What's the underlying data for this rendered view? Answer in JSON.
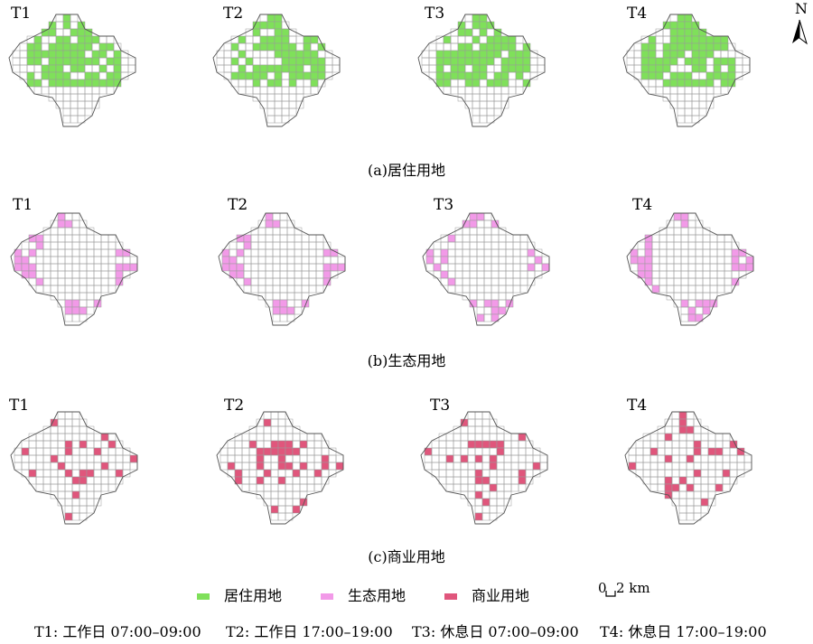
{
  "rows": [
    {
      "caption": "(a)居住用地",
      "color_key": "residential",
      "panels": [
        {
          "label": "T1"
        },
        {
          "label": "T2"
        },
        {
          "label": "T3"
        },
        {
          "label": "T4"
        }
      ]
    },
    {
      "caption": "(b)生态用地",
      "color_key": "ecological",
      "panels": [
        {
          "label": "T1"
        },
        {
          "label": "T2"
        },
        {
          "label": "T3"
        },
        {
          "label": "T4"
        }
      ]
    },
    {
      "caption": "(c)商业用地",
      "color_key": "commercial",
      "panels": [
        {
          "label": "T1"
        },
        {
          "label": "T2"
        },
        {
          "label": "T3"
        },
        {
          "label": "T4"
        }
      ]
    }
  ],
  "colors": {
    "residential": "#7fe05a",
    "ecological": "#f29ae8",
    "commercial": "#e0567c",
    "grid": "#9a9a9a",
    "boundary": "#555555"
  },
  "north_label": "N",
  "legend": [
    {
      "color_key": "residential",
      "label": "居住用地"
    },
    {
      "color_key": "ecological",
      "label": "生态用地"
    },
    {
      "color_key": "commercial",
      "label": "商业用地"
    }
  ],
  "scale_bar": {
    "zero": "0",
    "value": "2 km"
  },
  "footer": [
    "T1: 工作日 07:00–09:00",
    "T2: 工作日 17:00–19:00",
    "T3: 休息日 07:00–09:00",
    "T4: 休息日 17:00–19:00"
  ]
}
